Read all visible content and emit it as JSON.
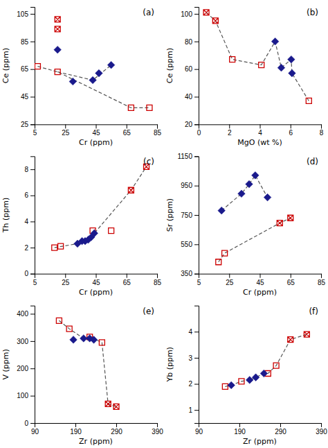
{
  "chart_data": [
    {
      "type": "scatter",
      "title": "(a)",
      "xlabel": "Cr (ppm)",
      "ylabel": "Ce (ppm)",
      "xlim": [
        5,
        85
      ],
      "ylim": [
        25,
        110
      ],
      "xticks": [
        5,
        25,
        45,
        65,
        85
      ],
      "yticks": [
        25,
        45,
        65,
        85,
        105
      ],
      "grid": false,
      "series": [
        {
          "type": "line",
          "line_style": "dashed",
          "color": "#555555",
          "x": [
            7,
            20,
            68,
            80
          ],
          "values": [
            67,
            63,
            37,
            37
          ]
        },
        {
          "type": "line",
          "line_style": "dashed",
          "color": "#555555",
          "x": [
            20,
            43,
            55
          ],
          "values": [
            63,
            57,
            68
          ]
        },
        {
          "type": "scatter",
          "marker": "square",
          "color": "#cc0000",
          "x": [
            7,
            20,
            68,
            80
          ],
          "values": [
            67,
            63,
            37,
            37
          ]
        },
        {
          "type": "scatter",
          "marker": "square-x",
          "color": "#cc0000",
          "x": [
            20,
            20
          ],
          "values": [
            101,
            94
          ]
        },
        {
          "type": "scatter",
          "marker": "diamond",
          "color": "#1a1a8c",
          "x": [
            20,
            30,
            43,
            47,
            55
          ],
          "values": [
            79,
            56,
            57,
            62,
            68
          ]
        }
      ]
    },
    {
      "type": "scatter",
      "title": "(b)",
      "xlabel": "MgO (wt %)",
      "ylabel": "Ce (ppm)",
      "xlim": [
        0,
        8
      ],
      "ylim": [
        20,
        105
      ],
      "xticks": [
        0,
        2,
        4,
        6,
        8
      ],
      "yticks": [
        20,
        40,
        60,
        80,
        100
      ],
      "grid": false,
      "series": [
        {
          "type": "line",
          "line_style": "dashed",
          "color": "#555555",
          "x": [
            0.5,
            1.1,
            2.2,
            4.1,
            5.0,
            5.4,
            6.05,
            6.1,
            7.2
          ],
          "values": [
            101,
            95,
            67,
            63,
            80,
            61,
            67,
            57,
            37
          ]
        },
        {
          "type": "scatter",
          "marker": "square",
          "color": "#cc0000",
          "x": [
            2.2,
            4.1,
            7.2
          ],
          "values": [
            67,
            63,
            37
          ]
        },
        {
          "type": "scatter",
          "marker": "square-x",
          "color": "#cc0000",
          "x": [
            0.5,
            1.1
          ],
          "values": [
            101,
            95
          ]
        },
        {
          "type": "scatter",
          "marker": "diamond",
          "color": "#1a1a8c",
          "x": [
            5.0,
            5.4,
            6.05,
            6.1
          ],
          "values": [
            80,
            61,
            67,
            57
          ]
        }
      ]
    },
    {
      "type": "scatter",
      "title": "(c)",
      "xlabel": "Cr (ppm)",
      "ylabel": "Th (ppm)",
      "xlim": [
        5,
        85
      ],
      "ylim": [
        0,
        9
      ],
      "xticks": [
        5,
        25,
        45,
        65,
        85
      ],
      "yticks": [
        0,
        2,
        4,
        6,
        8
      ],
      "grid": false,
      "series": [
        {
          "type": "line",
          "line_style": "dashed",
          "color": "#555555",
          "x": [
            18,
            33,
            40,
            44,
            68,
            78
          ],
          "values": [
            2.0,
            2.3,
            2.6,
            3.1,
            6.4,
            8.2
          ]
        },
        {
          "type": "scatter",
          "marker": "square",
          "color": "#cc0000",
          "x": [
            18,
            22,
            43,
            55
          ],
          "values": [
            2.0,
            2.1,
            3.3,
            3.3
          ]
        },
        {
          "type": "scatter",
          "marker": "square-x",
          "color": "#cc0000",
          "x": [
            68,
            78
          ],
          "values": [
            6.4,
            8.2
          ]
        },
        {
          "type": "scatter",
          "marker": "diamond",
          "color": "#1a1a8c",
          "x": [
            33,
            36,
            38,
            40,
            42,
            44
          ],
          "values": [
            2.3,
            2.5,
            2.5,
            2.6,
            2.8,
            3.1
          ]
        }
      ]
    },
    {
      "type": "scatter",
      "title": "(d)",
      "xlabel": "Cr (ppm)",
      "ylabel": "Sr (ppm)",
      "xlim": [
        5,
        85
      ],
      "ylim": [
        350,
        1150
      ],
      "xticks": [
        5,
        25,
        45,
        65,
        85
      ],
      "yticks": [
        350,
        550,
        750,
        950,
        1150
      ],
      "grid": false,
      "series": [
        {
          "type": "line",
          "line_style": "dashed",
          "color": "#555555",
          "x": [
            18,
            22,
            58,
            65
          ],
          "values": [
            430,
            490,
            695,
            730
          ]
        },
        {
          "type": "line",
          "line_style": "dashed",
          "color": "#555555",
          "x": [
            20,
            33,
            38,
            42,
            50
          ],
          "values": [
            780,
            895,
            960,
            1020,
            870
          ]
        },
        {
          "type": "scatter",
          "marker": "square",
          "color": "#cc0000",
          "x": [
            18,
            22
          ],
          "values": [
            430,
            490
          ]
        },
        {
          "type": "scatter",
          "marker": "square-x",
          "color": "#cc0000",
          "x": [
            58,
            65
          ],
          "values": [
            695,
            730
          ]
        },
        {
          "type": "scatter",
          "marker": "diamond",
          "color": "#1a1a8c",
          "x": [
            20,
            33,
            38,
            42,
            50
          ],
          "values": [
            780,
            895,
            960,
            1020,
            870
          ]
        }
      ]
    },
    {
      "type": "scatter",
      "title": "(e)",
      "xlabel": "Zr (ppm)",
      "ylabel": "V (ppm)",
      "xlim": [
        90,
        390
      ],
      "ylim": [
        0,
        430
      ],
      "xticks": [
        90,
        190,
        290,
        390
      ],
      "yticks": [
        0,
        100,
        200,
        300,
        400
      ],
      "grid": false,
      "series": [
        {
          "type": "line",
          "line_style": "dashed",
          "color": "#555555",
          "x": [
            150,
            175,
            210,
            225,
            255,
            270,
            290
          ],
          "values": [
            375,
            345,
            310,
            315,
            295,
            70,
            60
          ]
        },
        {
          "type": "scatter",
          "marker": "square",
          "color": "#cc0000",
          "x": [
            150,
            175,
            225,
            255
          ],
          "values": [
            375,
            345,
            315,
            295
          ]
        },
        {
          "type": "scatter",
          "marker": "square-x",
          "color": "#cc0000",
          "x": [
            270,
            290
          ],
          "values": [
            70,
            60
          ]
        },
        {
          "type": "scatter",
          "marker": "diamond",
          "color": "#1a1a8c",
          "x": [
            185,
            210,
            225,
            235
          ],
          "values": [
            305,
            310,
            310,
            305
          ]
        }
      ]
    },
    {
      "type": "scatter",
      "title": "(f)",
      "xlabel": "Zr (ppm)",
      "ylabel": "Yb (ppm)",
      "xlim": [
        90,
        390
      ],
      "ylim": [
        0.5,
        5.0
      ],
      "xticks": [
        90,
        190,
        290,
        390
      ],
      "yticks": [
        1,
        2,
        3,
        4
      ],
      "grid": false,
      "series": [
        {
          "type": "line",
          "line_style": "dashed",
          "color": "#555555",
          "x": [
            155,
            170,
            195,
            215,
            230,
            250,
            260,
            280,
            315,
            355
          ],
          "values": [
            1.9,
            1.95,
            2.1,
            2.15,
            2.25,
            2.4,
            2.4,
            2.7,
            3.7,
            3.9
          ]
        },
        {
          "type": "scatter",
          "marker": "square",
          "color": "#cc0000",
          "x": [
            155,
            195,
            260,
            280
          ],
          "values": [
            1.9,
            2.1,
            2.4,
            2.7
          ]
        },
        {
          "type": "scatter",
          "marker": "square-x",
          "color": "#cc0000",
          "x": [
            315,
            355
          ],
          "values": [
            3.7,
            3.9
          ]
        },
        {
          "type": "scatter",
          "marker": "diamond",
          "color": "#1a1a8c",
          "x": [
            170,
            215,
            230,
            250
          ],
          "values": [
            1.95,
            2.15,
            2.25,
            2.4
          ]
        }
      ]
    }
  ]
}
